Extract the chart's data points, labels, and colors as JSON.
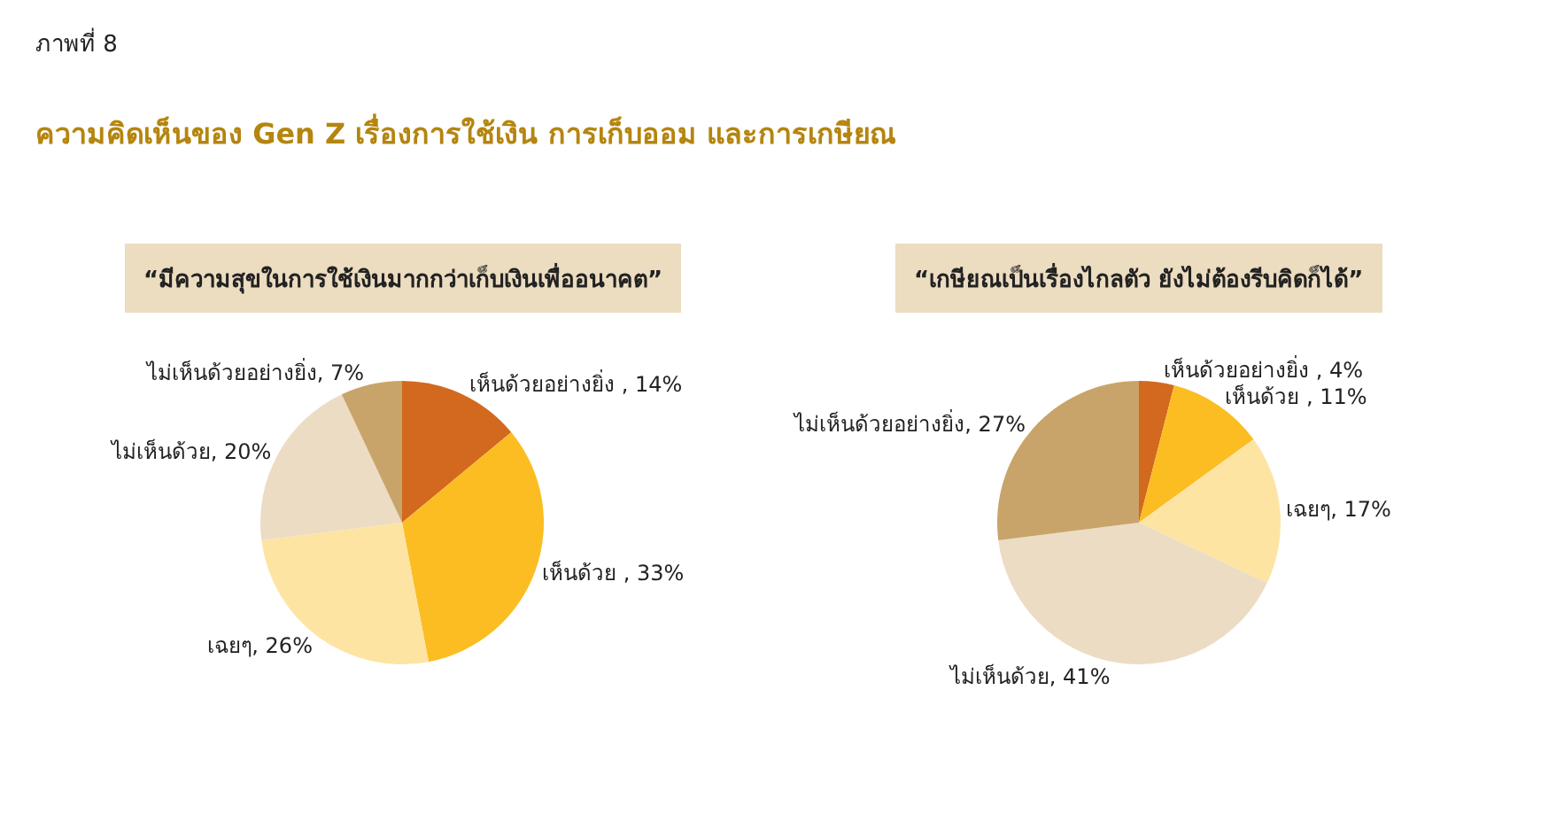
{
  "chart_data": [
    {
      "type": "pie",
      "title": "“มีความสุขในการใช้เงินมากกว่าเก็บเงินเพื่ออนาคต”",
      "annotations": [
        "ภาพที่ 8",
        "ความคิดเห็นของ Gen Z เรื่องการใช้เงิน การเก็บออม และการเกษียณ"
      ],
      "categories": [
        "เห็นด้วยอย่างยิ่ง ",
        "เห็นด้วย ",
        "เฉยๆ",
        "ไม่เห็นด้วย",
        "ไม่เห็นด้วยอย่างยิ่ง"
      ],
      "values": [
        14,
        33,
        26,
        20,
        7
      ],
      "value_labels": [
        "14%",
        "33%",
        "26%",
        "20%",
        "7%"
      ],
      "colors": [
        "#d2691e",
        "#fbbd22",
        "#fde4a2",
        "#ecdcc4",
        "#c9a46a"
      ],
      "legend": false
    },
    {
      "type": "pie",
      "title": "“เกษียณเป็นเรื่องไกลตัว ยังไม่ต้องรีบคิดก็ได้”",
      "categories": [
        "เห็นด้วยอย่างยิ่ง ",
        "เห็นด้วย ",
        "เฉยๆ",
        "ไม่เห็นด้วย",
        "ไม่เห็นด้วยอย่างยิ่ง"
      ],
      "values": [
        4,
        11,
        17,
        41,
        27
      ],
      "value_labels": [
        "4%",
        "11%",
        "17%",
        "41%",
        "27%"
      ],
      "colors": [
        "#d2691e",
        "#fbbd22",
        "#fde4a2",
        "#ecdcc4",
        "#c9a46a"
      ],
      "legend": false
    }
  ]
}
